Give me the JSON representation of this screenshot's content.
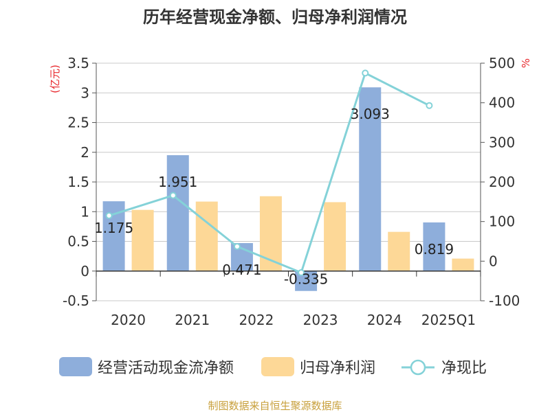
{
  "chart_data": {
    "type": "bar",
    "title": "历年经营现金净额、归母净利润情况",
    "categories": [
      "2020",
      "2021",
      "2022",
      "2023",
      "2024",
      "2025Q1"
    ],
    "left_axis": {
      "unit": "(亿元)",
      "ylim": [
        -0.5,
        3.5
      ],
      "ticks": [
        "-0.5",
        "0",
        "0.5",
        "1",
        "1.5",
        "2",
        "2.5",
        "3",
        "3.5"
      ]
    },
    "right_axis": {
      "unit": "%",
      "ylim": [
        -100,
        500
      ],
      "ticks": [
        "-100",
        "0",
        "100",
        "200",
        "300",
        "400",
        "500"
      ]
    },
    "series": [
      {
        "name": "经营活动现金流净额",
        "kind": "bar",
        "axis": "left",
        "color": "#8eaedb",
        "values": [
          1.175,
          1.951,
          0.471,
          -0.335,
          3.093,
          0.819
        ],
        "labels": [
          "1.175",
          "1.951",
          "0.471",
          "-0.335",
          "3.093",
          "0.819"
        ]
      },
      {
        "name": "归母净利润",
        "kind": "bar",
        "axis": "left",
        "color": "#fdd897",
        "values": [
          1.03,
          1.17,
          1.26,
          1.16,
          0.66,
          0.21
        ]
      },
      {
        "name": "净现比",
        "kind": "line",
        "axis": "right",
        "color": "#84d2d8",
        "values": [
          115,
          166,
          37,
          -29,
          475,
          393
        ]
      }
    ],
    "grid": true,
    "legend_position": "bottom"
  },
  "source_text": "制图数据来自恒生聚源数据库"
}
